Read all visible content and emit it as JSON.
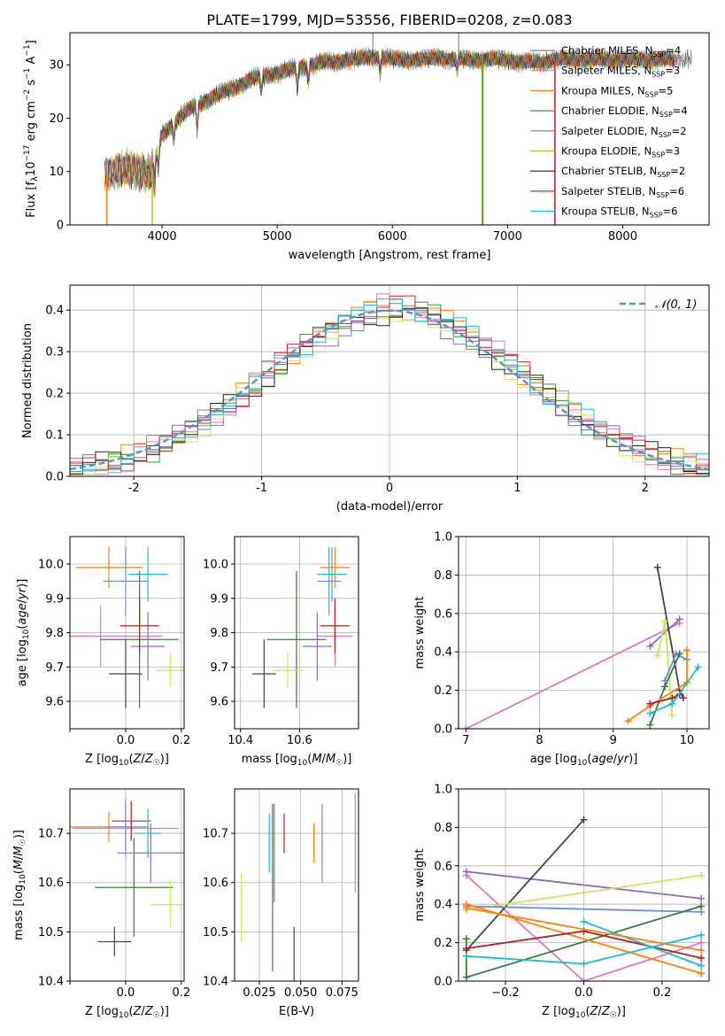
{
  "colors": {
    "black": "#000000",
    "grid": "#b0b0b0",
    "normal_curve": "#5b8fd6"
  },
  "figure": {
    "title": "PLATE=1799, MJD=53556, FIBERID=0208, z=0.083"
  },
  "models": [
    {
      "name": "Chabrier MILES",
      "nssp": "4",
      "color": "#7f7f7f"
    },
    {
      "name": "Salpeter MILES",
      "nssp": "3",
      "color": "#e377c2"
    },
    {
      "name": "Kroupa MILES",
      "nssp": "5",
      "color": "#ff7f0e"
    },
    {
      "name": "Chabrier ELODIE",
      "nssp": "4",
      "color": "#2ca02c"
    },
    {
      "name": "Salpeter ELODIE",
      "nssp": "2",
      "color": "#9467bd"
    },
    {
      "name": "Kroupa ELODIE",
      "nssp": "3",
      "color": "#bcbd22"
    },
    {
      "name": "Chabrier STELIB",
      "nssp": "2",
      "color": "#222222"
    },
    {
      "name": "Salpeter STELIB",
      "nssp": "6",
      "color": "#d62728"
    },
    {
      "name": "Kroupa STELIB",
      "nssp": "6",
      "color": "#17becf"
    }
  ],
  "chart_data": [
    {
      "id": "spectrum",
      "type": "line",
      "xlabel": "wavelength [Angstrom, rest frame]",
      "ylabel": "Flux [f_λ 10^-17 erg cm^-2 s^-1 A^-1]",
      "xlim": [
        3200,
        8750
      ],
      "ylim": [
        0,
        36
      ],
      "xticks": [
        4000,
        5000,
        6000,
        7000,
        8000
      ],
      "yticks": [
        0,
        10,
        20,
        30
      ],
      "continuum": {
        "x": [
          3500,
          3600,
          3700,
          3800,
          3900,
          4000,
          4100,
          4200,
          4300,
          4400,
          4500,
          4600,
          4700,
          4800,
          4900,
          5000,
          5100,
          5200,
          5300,
          5400,
          5500,
          5600,
          5700,
          5800,
          5900,
          6000,
          6100,
          6200,
          6300,
          6400,
          6500,
          6600,
          6700,
          6800,
          6900,
          7000,
          7100,
          7200,
          7300,
          7400
        ],
        "y": [
          9.5,
          10,
          10.5,
          10,
          9.5,
          17,
          19,
          21,
          22.5,
          23.5,
          24.5,
          25.5,
          26.5,
          27.5,
          28,
          28.5,
          29,
          29.5,
          30,
          30.5,
          30.5,
          31,
          31,
          31.5,
          31.5,
          31,
          31,
          31,
          31,
          31.5,
          31,
          31,
          31,
          31,
          31,
          31,
          30.5,
          30.5,
          30.5,
          31
        ]
      },
      "absorption_features": [
        {
          "x": 3933,
          "depth": 5
        },
        {
          "x": 3968,
          "depth": 4
        },
        {
          "x": 4102,
          "depth": 3
        },
        {
          "x": 4305,
          "depth": 5
        },
        {
          "x": 4861,
          "depth": 3
        },
        {
          "x": 5175,
          "depth": 4
        },
        {
          "x": 5270,
          "depth": 3
        },
        {
          "x": 5894,
          "depth": 3
        },
        {
          "x": 6563,
          "depth": 2
        }
      ],
      "drops": [
        {
          "x": 3520,
          "color": "#ff7f0e"
        },
        {
          "x": 3915,
          "color": "#bcbd22"
        },
        {
          "x": 6780,
          "color": "#bcbd22"
        },
        {
          "x": 6785,
          "color": "#2ca02c"
        },
        {
          "x": 7410,
          "color": "#e377c2"
        },
        {
          "x": 7412,
          "color": "#d62728"
        }
      ],
      "spikes": [
        {
          "x": 5830,
          "top": 36
        },
        {
          "x": 6575,
          "top": 36
        }
      ],
      "legend_position": "upper right"
    },
    {
      "id": "residuals",
      "type": "step",
      "xlabel": "(data-model)/error",
      "ylabel": "Normed distribution",
      "xlim": [
        -2.5,
        2.5
      ],
      "ylim": [
        0,
        0.46
      ],
      "xticks": [
        -2,
        -1,
        0,
        1,
        2
      ],
      "yticks": [
        0,
        0.1,
        0.2,
        0.3,
        0.4
      ],
      "bin_width": 0.1,
      "reference": {
        "label": "N(0, 1)",
        "mean": 0,
        "sigma": 1,
        "style": "dashed"
      },
      "legend_position": "upper right",
      "series_colors": [
        "#7f7f7f",
        "#e377c2",
        "#ff7f0e",
        "#2ca02c",
        "#9467bd",
        "#c8e85a",
        "#222222",
        "#d62728",
        "#17becf"
      ]
    },
    {
      "id": "age_vs_Z",
      "type": "errorbar",
      "xlabel": "Z [log10(Z/Z☉)]",
      "ylabel": "age [log10(age/yr)]",
      "xlim": [
        -0.2,
        0.21
      ],
      "ylim": [
        9.52,
        10.08
      ],
      "xticks": [
        -0.2,
        0.0,
        0.2
      ],
      "xticklabels": [
        "",
        "0.0",
        "0.2"
      ],
      "yticks": [
        9.6,
        9.7,
        9.8,
        9.9,
        10.0
      ],
      "points": [
        {
          "x": -0.09,
          "xerr": 0.22,
          "y": 9.79,
          "yerr": 0.09,
          "color": "#e377c2"
        },
        {
          "x": -0.06,
          "xerr": 0.12,
          "y": 9.99,
          "yerr": 0.06,
          "color": "#ff7f0e"
        },
        {
          "x": 0.0,
          "xerr": 0.08,
          "y": 9.95,
          "yerr": 0.1,
          "color": "#6b8fd8"
        },
        {
          "x": 0.05,
          "xerr": 0.14,
          "y": 9.78,
          "yerr": 0.2,
          "color": "#3b7a3b"
        },
        {
          "x": 0.08,
          "xerr": 0.06,
          "y": 9.76,
          "yerr": 0.1,
          "color": "#9467bd"
        },
        {
          "x": 0.16,
          "xerr": 0.05,
          "y": 9.69,
          "yerr": 0.05,
          "color": "#c8e85a"
        },
        {
          "x": 0.0,
          "xerr": 0.06,
          "y": 9.68,
          "yerr": 0.1,
          "color": "#444444"
        },
        {
          "x": 0.05,
          "xerr": 0.07,
          "y": 9.82,
          "yerr": 0.08,
          "color": "#b22222"
        },
        {
          "x": 0.08,
          "xerr": 0.07,
          "y": 9.97,
          "yerr": 0.08,
          "color": "#17becf"
        }
      ]
    },
    {
      "id": "age_vs_mass",
      "type": "errorbar",
      "xlabel": "mass [log10(M/M☉)]",
      "ylabel": "",
      "xlim": [
        10.38,
        10.8
      ],
      "ylim": [
        9.52,
        10.08
      ],
      "xticks": [
        10.4,
        10.6
      ],
      "yticks": [
        9.6,
        9.7,
        9.8,
        9.9,
        10.0
      ],
      "points": [
        {
          "x": 10.72,
          "xerr": 0.06,
          "y": 9.79,
          "yerr": 0.09,
          "color": "#e377c2"
        },
        {
          "x": 10.72,
          "xerr": 0.05,
          "y": 9.99,
          "yerr": 0.06,
          "color": "#ff7f0e"
        },
        {
          "x": 10.7,
          "xerr": 0.04,
          "y": 9.95,
          "yerr": 0.1,
          "color": "#6b8fd8"
        },
        {
          "x": 10.59,
          "xerr": 0.1,
          "y": 9.78,
          "yerr": 0.2,
          "color": "#3b7a3b"
        },
        {
          "x": 10.66,
          "xerr": 0.05,
          "y": 9.76,
          "yerr": 0.1,
          "color": "#9467bd"
        },
        {
          "x": 10.56,
          "xerr": 0.05,
          "y": 9.69,
          "yerr": 0.05,
          "color": "#c8e85a"
        },
        {
          "x": 10.48,
          "xerr": 0.04,
          "y": 9.68,
          "yerr": 0.1,
          "color": "#444444"
        },
        {
          "x": 10.72,
          "xerr": 0.05,
          "y": 9.82,
          "yerr": 0.08,
          "color": "#b22222"
        },
        {
          "x": 10.71,
          "xerr": 0.05,
          "y": 9.97,
          "yerr": 0.08,
          "color": "#17becf"
        }
      ]
    },
    {
      "id": "weight_vs_age",
      "type": "line",
      "xlabel": "age [log10(age/yr)]",
      "ylabel": "mass weight",
      "xlim": [
        6.9,
        10.3
      ],
      "ylim": [
        0,
        1.0
      ],
      "xticks": [
        7,
        8,
        9,
        10
      ],
      "yticks": [
        0.0,
        0.2,
        0.4,
        0.6,
        0.8,
        1.0
      ],
      "series": [
        {
          "color": "#e377c2",
          "x": [
            7.0,
            9.9
          ],
          "y": [
            0.0,
            0.55
          ]
        },
        {
          "color": "#9467bd",
          "x": [
            9.5,
            9.9
          ],
          "y": [
            0.43,
            0.57
          ]
        },
        {
          "color": "#444444",
          "x": [
            9.6,
            9.9,
            9.95
          ],
          "y": [
            0.84,
            0.2,
            0.16
          ]
        },
        {
          "color": "#c8e85a",
          "x": [
            9.6,
            9.7,
            9.8
          ],
          "y": [
            0.38,
            0.56,
            0.07
          ]
        },
        {
          "color": "#6b8fd8",
          "x": [
            9.7,
            9.85,
            10.0
          ],
          "y": [
            0.25,
            0.39,
            0.36
          ]
        },
        {
          "color": "#3b7a3b",
          "x": [
            9.5,
            9.7,
            9.9
          ],
          "y": [
            0.02,
            0.22,
            0.39
          ]
        },
        {
          "color": "#ff7f0e",
          "x": [
            9.2,
            9.5,
            10.0,
            10.0
          ],
          "y": [
            0.04,
            0.12,
            0.24,
            0.41
          ]
        },
        {
          "color": "#b22222",
          "x": [
            9.5,
            9.8,
            9.9
          ],
          "y": [
            0.13,
            0.16,
            0.18
          ]
        },
        {
          "color": "#17becf",
          "x": [
            9.5,
            9.8,
            10.15
          ],
          "y": [
            0.08,
            0.13,
            0.32
          ]
        }
      ]
    },
    {
      "id": "mass_vs_Z",
      "type": "errorbar",
      "xlabel": "Z [log10(Z/Z☉)]",
      "ylabel": "mass [log10(M/M☉)]",
      "xlim": [
        -0.2,
        0.21
      ],
      "ylim": [
        10.4,
        10.79
      ],
      "xticks": [
        -0.2,
        0.0,
        0.2
      ],
      "xticklabels": [
        "",
        "0.0",
        "0.2"
      ],
      "yticks": [
        10.4,
        10.5,
        10.6,
        10.7
      ],
      "points": [
        {
          "x": 0.0,
          "xerr": 0.19,
          "y": 10.71,
          "yerr": 0.06,
          "color": "#e377c2"
        },
        {
          "x": -0.06,
          "xerr": 0.14,
          "y": 10.713,
          "yerr": 0.03,
          "color": "#ff7f0e"
        },
        {
          "x": 0.0,
          "xerr": 0.07,
          "y": 10.713,
          "yerr": 0.05,
          "color": "#6b8fd8"
        },
        {
          "x": 0.03,
          "xerr": 0.14,
          "y": 10.59,
          "yerr": 0.1,
          "color": "#3b7a3b"
        },
        {
          "x": 0.09,
          "xerr": 0.12,
          "y": 10.66,
          "yerr": 0.06,
          "color": "#9467bd"
        },
        {
          "x": 0.16,
          "xerr": 0.07,
          "y": 10.555,
          "yerr": 0.05,
          "color": "#c8e85a"
        },
        {
          "x": -0.04,
          "xerr": 0.06,
          "y": 10.48,
          "yerr": 0.03,
          "color": "#444444"
        },
        {
          "x": 0.02,
          "xerr": 0.07,
          "y": 10.725,
          "yerr": 0.04,
          "color": "#b22222"
        },
        {
          "x": 0.08,
          "xerr": 0.05,
          "y": 10.7,
          "yerr": 0.05,
          "color": "#17becf"
        }
      ]
    },
    {
      "id": "mass_vs_ebv",
      "type": "errorbar",
      "xlabel": "E(B-V)",
      "ylabel": "",
      "xlim": [
        0.01,
        0.085
      ],
      "ylim": [
        10.4,
        10.79
      ],
      "xticks": [
        0.025,
        0.05,
        0.075
      ],
      "xticklabels": [
        "0.025",
        "0.050",
        "0.075"
      ],
      "yticks": [
        10.4,
        10.5,
        10.6,
        10.7
      ],
      "points": [
        {
          "x": 0.083,
          "y": 10.68,
          "yerr": 0.1,
          "color": "#e377c2"
        },
        {
          "x": 0.058,
          "y": 10.68,
          "yerr": 0.04,
          "color": "#ff7f0e"
        },
        {
          "x": 0.063,
          "y": 10.68,
          "yerr": 0.08,
          "color": "#6b8fd8"
        },
        {
          "x": 0.033,
          "y": 10.59,
          "yerr": 0.17,
          "color": "#3b7a3b"
        },
        {
          "x": 0.034,
          "y": 10.66,
          "yerr": 0.1,
          "color": "#9467bd"
        },
        {
          "x": 0.014,
          "y": 10.55,
          "yerr": 0.07,
          "color": "#c8e85a"
        },
        {
          "x": 0.046,
          "y": 10.45,
          "yerr": 0.06,
          "color": "#444444"
        },
        {
          "x": 0.04,
          "y": 10.7,
          "yerr": 0.04,
          "color": "#b22222"
        },
        {
          "x": 0.031,
          "y": 10.68,
          "yerr": 0.06,
          "color": "#17becf"
        }
      ]
    },
    {
      "id": "weight_vs_Z",
      "type": "line",
      "xlabel": "Z [log10(Z/Z☉)]",
      "ylabel": "mass weight",
      "xlim": [
        -0.32,
        0.32
      ],
      "ylim": [
        0,
        1.0
      ],
      "xticks": [
        -0.2,
        0.0,
        0.2
      ],
      "xticklabels": [
        "−0.2",
        "0.0",
        "0.2"
      ],
      "yticks": [
        0.0,
        0.2,
        0.4,
        0.6,
        0.8,
        1.0
      ],
      "series": [
        {
          "color": "#e377c2",
          "x": [
            -0.3,
            0.0,
            0.3
          ],
          "y": [
            0.55,
            0.0,
            0.2
          ]
        },
        {
          "color": "#9467bd",
          "x": [
            -0.3,
            0.3
          ],
          "y": [
            0.57,
            0.43
          ]
        },
        {
          "color": "#444444",
          "x": [
            -0.3,
            0.0
          ],
          "y": [
            0.16,
            0.84
          ]
        },
        {
          "color": "#c8e85a",
          "x": [
            -0.3,
            0.3
          ],
          "y": [
            0.37,
            0.55
          ]
        },
        {
          "color": "#6b8fd8",
          "x": [
            -0.3,
            0.3
          ],
          "y": [
            0.39,
            0.36
          ]
        },
        {
          "color": "#3b7a3b",
          "x": [
            -0.3,
            -0.3,
            0.3
          ],
          "y": [
            0.22,
            0.02,
            0.39
          ]
        },
        {
          "color": "#ff7f0e",
          "x": [
            -0.3,
            0.3
          ],
          "y": [
            0.4,
            0.04
          ]
        },
        {
          "color": "#b22222",
          "x": [
            -0.3,
            0.0,
            0.3
          ],
          "y": [
            0.17,
            0.26,
            0.12
          ]
        },
        {
          "color": "#17becf",
          "x": [
            -0.3,
            0.0,
            0.3
          ],
          "y": [
            0.13,
            0.09,
            0.24
          ]
        }
      ],
      "extra_series": [
        {
          "color": "#17becf",
          "x": [
            0.0,
            0.3
          ],
          "y": [
            0.31,
            0.08
          ]
        },
        {
          "color": "#ff7f0e",
          "x": [
            -0.3,
            0.3
          ],
          "y": [
            0.38,
            0.16
          ]
        }
      ]
    }
  ]
}
